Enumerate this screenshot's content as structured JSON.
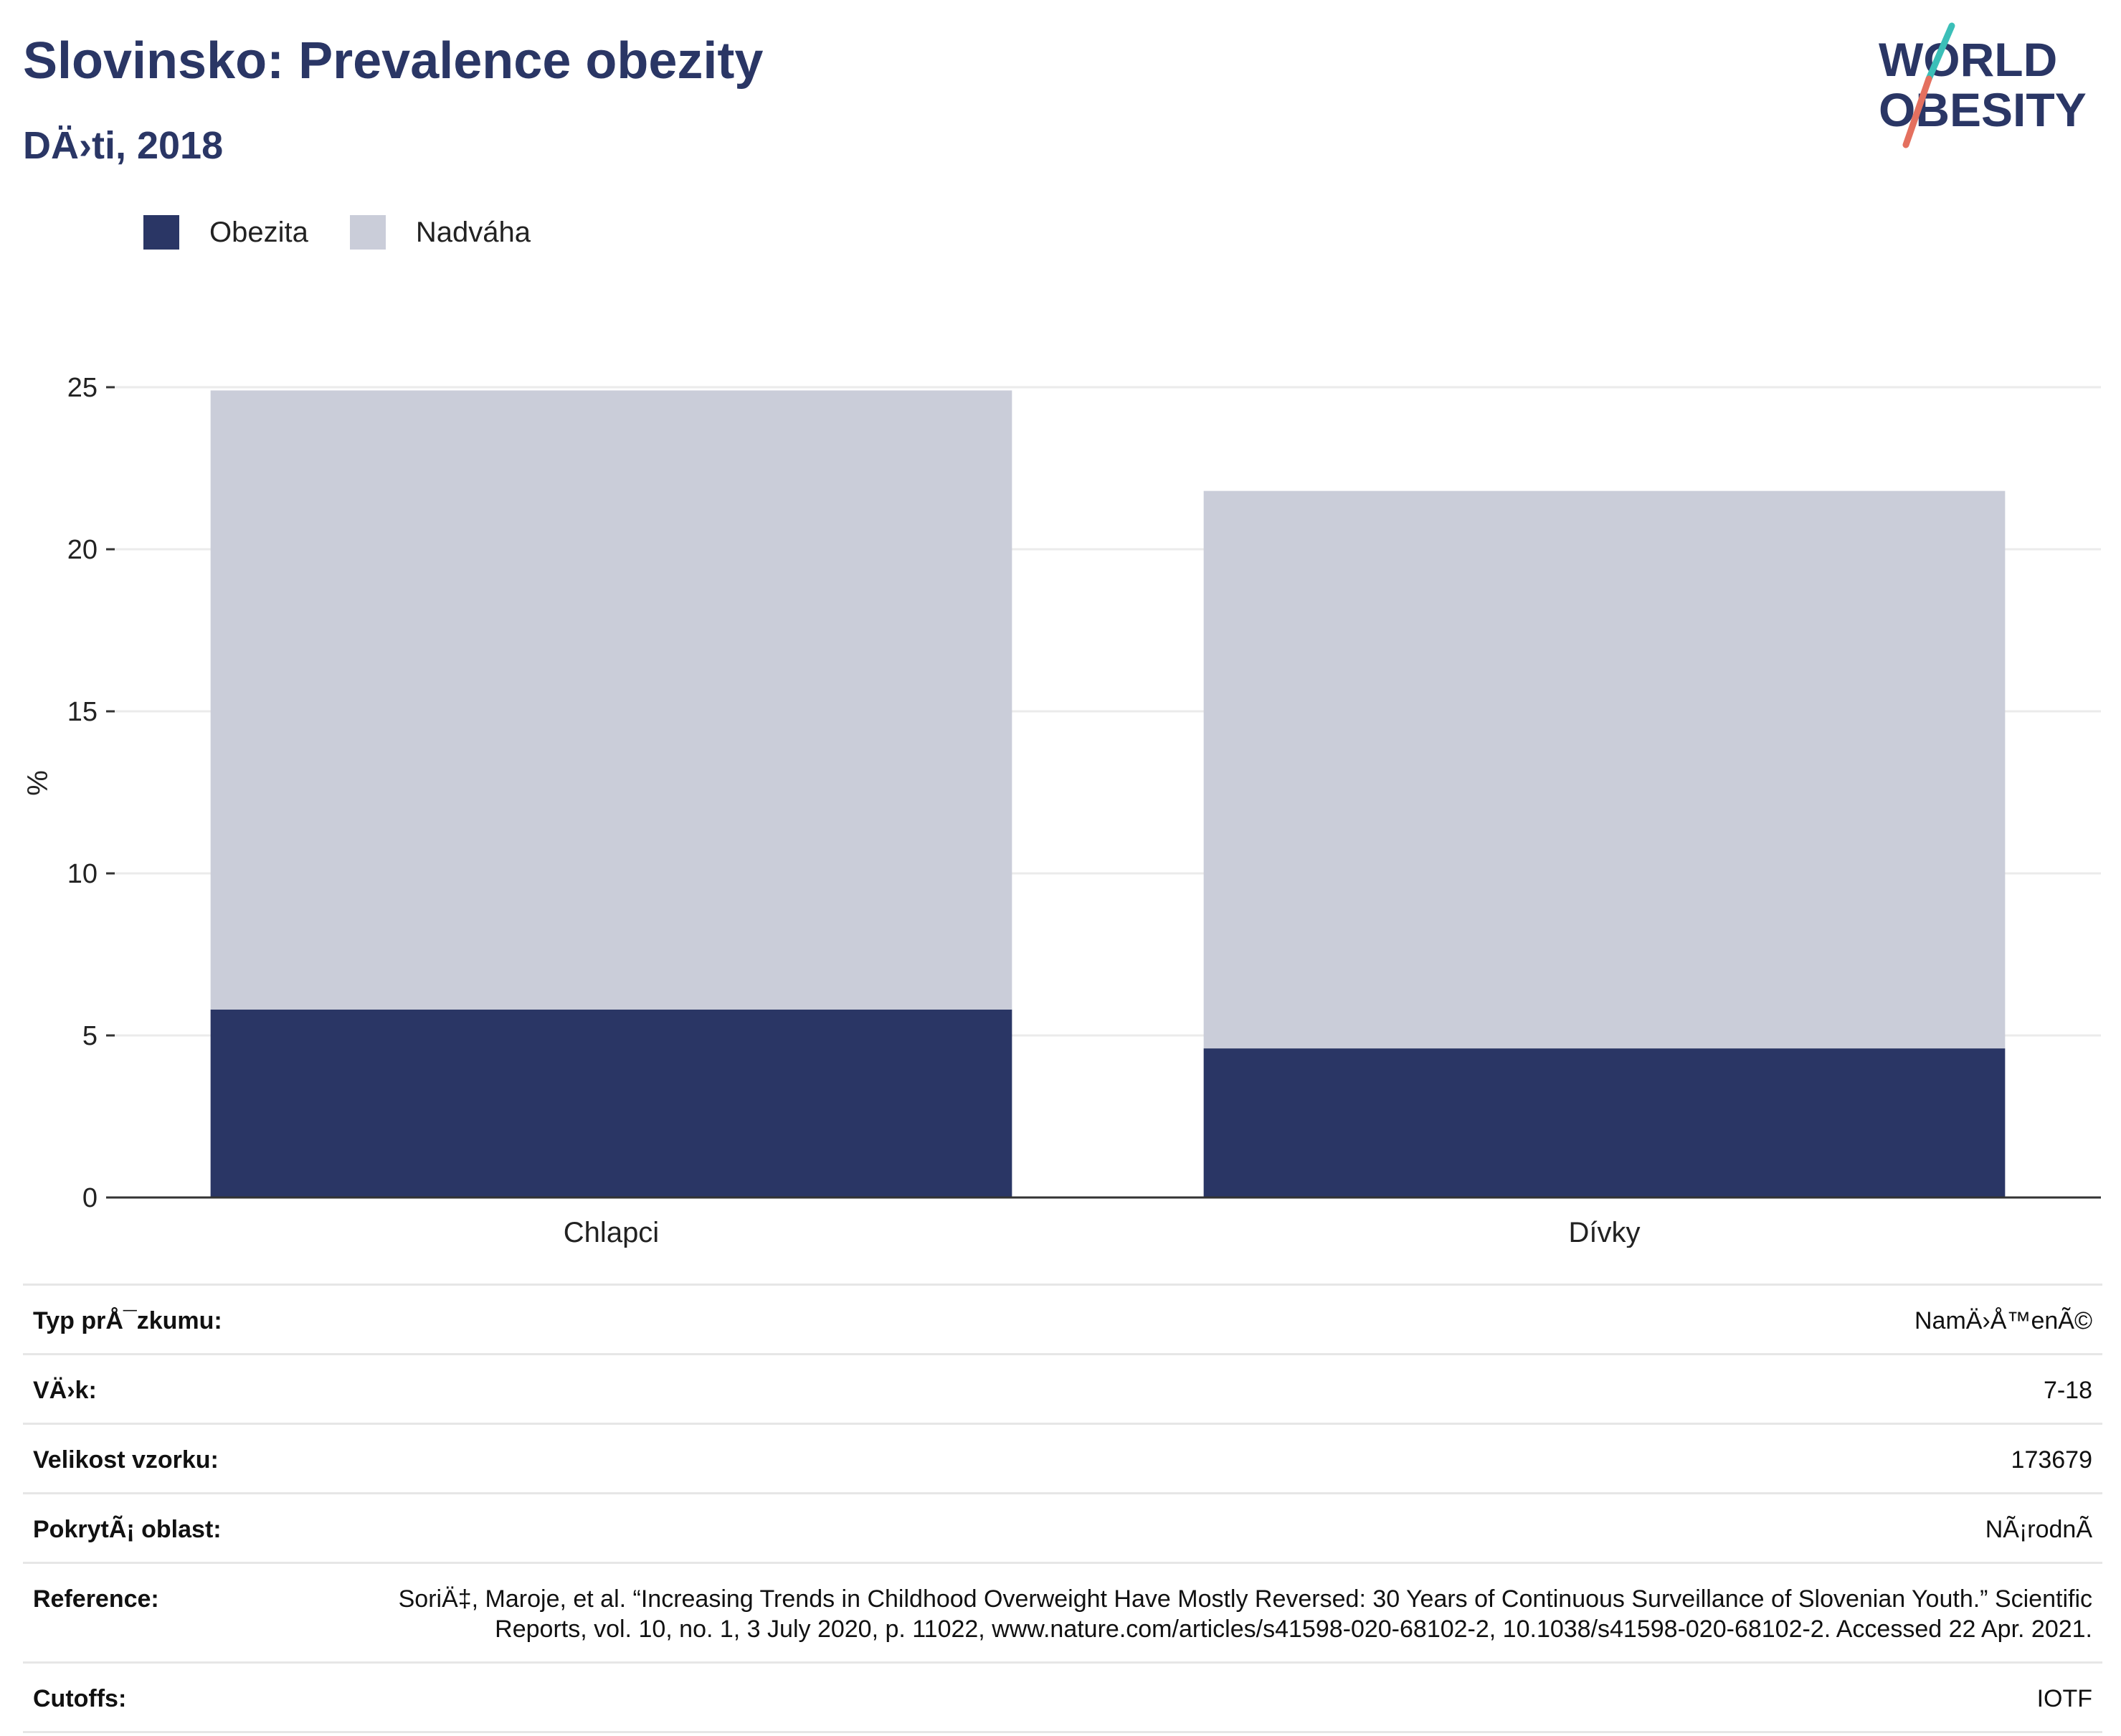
{
  "header": {
    "title": "Slovinsko: Prevalence obezity",
    "subtitle": "DÄ›ti, 2018"
  },
  "logo": {
    "line1": "WORLD",
    "line2": "OBESITY",
    "text_color": "#2a3665",
    "stripe_teal": "#3bbfb8",
    "stripe_coral": "#e4705f"
  },
  "legend": {
    "items": [
      {
        "label": "Obezita",
        "color": "#2a3665"
      },
      {
        "label": "Nadváha",
        "color": "#cacdd9"
      }
    ]
  },
  "chart_data": {
    "type": "bar",
    "stacked": true,
    "categories": [
      "Chlapci",
      "Dívky"
    ],
    "series": [
      {
        "name": "Obezita",
        "color": "#2a3665",
        "values": [
          5.8,
          4.6
        ]
      },
      {
        "name": "Nadváha",
        "color": "#cacdd9",
        "values": [
          19.1,
          17.2
        ]
      }
    ],
    "ylabel": "%",
    "ylim": [
      0,
      25
    ],
    "yticks": [
      0,
      5,
      10,
      15,
      20,
      25
    ],
    "grid": true,
    "legend_position": "top-left"
  },
  "info": {
    "rows": [
      {
        "label": "Typ prÅ¯zkumu:",
        "value": "NamÄ›Å™enÃ©"
      },
      {
        "label": "VÄ›k:",
        "value": "7-18"
      },
      {
        "label": "Velikost vzorku:",
        "value": "173679"
      },
      {
        "label": "PokrytÃ¡ oblast:",
        "value": "NÃ¡rodnÃ"
      },
      {
        "label": "Reference:",
        "value": "SoriÄ‡, Maroje, et al. “Increasing Trends in Childhood Overweight Have Mostly Reversed: 30 Years of Continuous Surveillance of Slovenian Youth.” Scientific Reports, vol. 10, no. 1, 3 July 2020, p. 11022, www.nature.com/articles/s41598-020-68102-2, 10.1038/s41598-020-68102-2. Accessed 22 Apr. 2021."
      },
      {
        "label": "Cutoffs:",
        "value": "IOTF"
      }
    ]
  }
}
